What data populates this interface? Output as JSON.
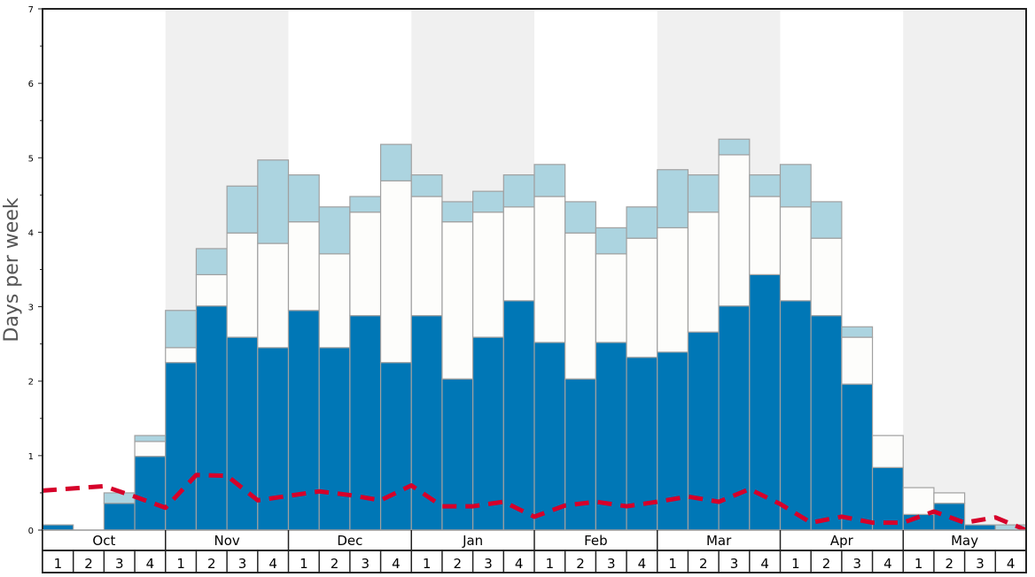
{
  "chart_data": {
    "type": "bar",
    "stacked": true,
    "ylabel": "Days per week",
    "ylim": [
      0,
      7
    ],
    "yticks": [
      "0",
      "1",
      "2",
      "3",
      "4",
      "5",
      "6",
      "7"
    ],
    "months": [
      "Oct",
      "Nov",
      "Dec",
      "Jan",
      "Feb",
      "Mar",
      "Apr",
      "May"
    ],
    "week_labels": [
      "1",
      "2",
      "3",
      "4"
    ],
    "colors": {
      "dark": "#0077b6",
      "white": "#fdfdfb",
      "light": "#acd4e0",
      "line": "#d6002a",
      "shade": "#f0f0f0",
      "edge": "#a0a0a0"
    },
    "series": [
      {
        "name": "dark",
        "values": [
          0.07,
          0,
          0.36,
          0.99,
          2.25,
          3.01,
          2.59,
          2.45,
          2.95,
          2.45,
          2.88,
          2.25,
          2.88,
          2.03,
          2.59,
          3.08,
          2.52,
          2.03,
          2.52,
          2.32,
          2.39,
          2.66,
          3.01,
          3.43,
          3.08,
          2.88,
          1.96,
          0.84,
          0.21,
          0.36,
          0.07,
          0
        ]
      },
      {
        "name": "white",
        "values": [
          0,
          0,
          0,
          0.2,
          0.2,
          0.42,
          1.4,
          1.4,
          1.19,
          1.26,
          1.39,
          2.44,
          1.6,
          2.11,
          1.68,
          1.26,
          1.96,
          1.96,
          1.19,
          1.6,
          1.67,
          1.61,
          2.03,
          1.05,
          1.26,
          1.04,
          0.63,
          0.43,
          0.36,
          0.14,
          0,
          0
        ]
      },
      {
        "name": "light",
        "values": [
          0,
          0,
          0.14,
          0.08,
          0.5,
          0.35,
          0.63,
          1.12,
          0.63,
          0.63,
          0.21,
          0.49,
          0.29,
          0.27,
          0.28,
          0.43,
          0.43,
          0.42,
          0.35,
          0.42,
          0.78,
          0.5,
          0.21,
          0.29,
          0.57,
          0.49,
          0.14,
          0,
          0,
          0,
          0,
          0.07
        ]
      },
      {
        "name": "average",
        "type": "line",
        "values": [
          0.53,
          0.56,
          0.59,
          0.45,
          0.3,
          0.74,
          0.73,
          0.4,
          0.46,
          0.52,
          0.47,
          0.4,
          0.6,
          0.32,
          0.32,
          0.38,
          0.18,
          0.33,
          0.38,
          0.32,
          0.38,
          0.45,
          0.38,
          0.55,
          0.35,
          0.1,
          0.18,
          0.1,
          0.1,
          0.25,
          0.1,
          0.17,
          0.0
        ]
      }
    ]
  }
}
